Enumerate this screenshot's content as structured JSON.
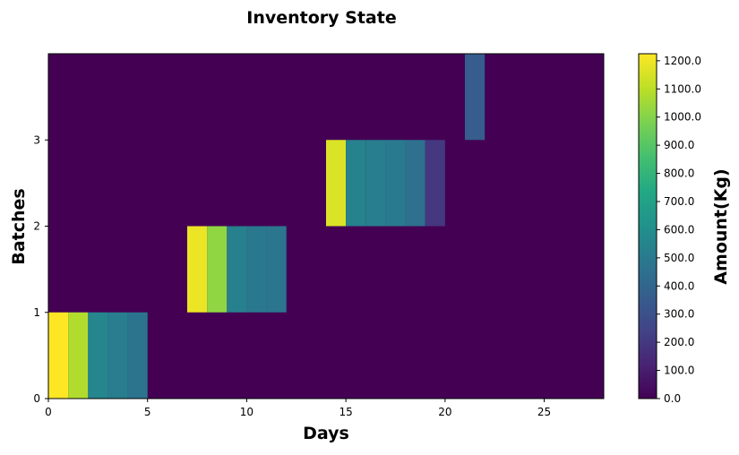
{
  "chart_data": {
    "type": "heatmap",
    "title": "Inventory State",
    "xlabel": "Days",
    "ylabel": "Batches",
    "colorbar_label": "Amount(Kg)",
    "colormap": "viridis",
    "xlim": [
      0,
      28
    ],
    "ylim": [
      0,
      4
    ],
    "clim": [
      0,
      1225
    ],
    "x_ticks": [
      0,
      5,
      10,
      15,
      20,
      25
    ],
    "y_ticks": [
      0,
      1,
      2,
      3
    ],
    "colorbar_ticks": [
      "0.0",
      "100.0",
      "200.0",
      "300.0",
      "400.0",
      "500.0",
      "600.0",
      "700.0",
      "800.0",
      "900.0",
      "1000.0",
      "1100.0",
      "1200.0"
    ],
    "background_value": 0,
    "cells": [
      {
        "batch": 0,
        "day": 0,
        "value": 1225
      },
      {
        "batch": 0,
        "day": 1,
        "value": 1080
      },
      {
        "batch": 0,
        "day": 2,
        "value": 560
      },
      {
        "batch": 0,
        "day": 3,
        "value": 520
      },
      {
        "batch": 0,
        "day": 4,
        "value": 470
      },
      {
        "batch": 1,
        "day": 7,
        "value": 1190
      },
      {
        "batch": 1,
        "day": 8,
        "value": 1020
      },
      {
        "batch": 1,
        "day": 9,
        "value": 530
      },
      {
        "batch": 1,
        "day": 10,
        "value": 490
      },
      {
        "batch": 1,
        "day": 11,
        "value": 480
      },
      {
        "batch": 2,
        "day": 14,
        "value": 1160
      },
      {
        "batch": 2,
        "day": 15,
        "value": 540
      },
      {
        "batch": 2,
        "day": 16,
        "value": 520
      },
      {
        "batch": 2,
        "day": 17,
        "value": 500
      },
      {
        "batch": 2,
        "day": 18,
        "value": 450
      },
      {
        "batch": 2,
        "day": 19,
        "value": 200
      },
      {
        "batch": 3,
        "day": 21,
        "value": 360
      }
    ]
  }
}
